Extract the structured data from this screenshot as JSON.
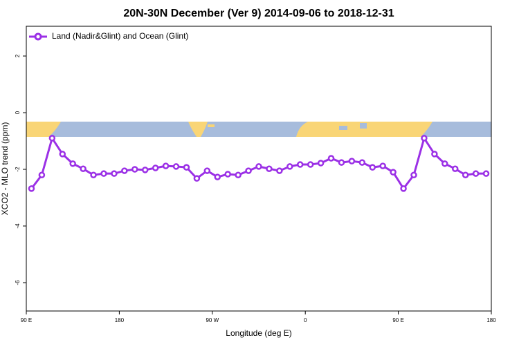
{
  "chart_data": {
    "type": "line",
    "title": "20N-30N December (Ver 9)   2014-09-06 to 2018-12-31",
    "x_label": "Longitude (deg E)",
    "y_label": "XCO2 - MLO trend (ppm)",
    "legend_position": "top-left",
    "x": [
      95,
      105,
      115,
      125,
      135,
      145,
      155,
      165,
      175,
      185,
      195,
      205,
      215,
      225,
      235,
      245,
      255,
      265,
      275,
      285,
      295,
      305,
      315,
      325,
      335,
      345,
      355,
      365,
      375,
      385,
      395,
      405,
      415,
      425,
      435,
      445,
      455,
      465,
      475,
      485,
      495,
      505,
      515,
      525,
      535
    ],
    "series": [
      {
        "name": "Land (Nadir&Glint) and Ocean (Glint)",
        "color": "#9b30e6",
        "values": [
          -2.68,
          -2.2,
          -0.9,
          -1.46,
          -1.8,
          -1.98,
          -2.2,
          -2.15,
          -2.15,
          -2.05,
          -2.0,
          -2.02,
          -1.95,
          -1.88,
          -1.9,
          -1.93,
          -2.32,
          -2.05,
          -2.27,
          -2.17,
          -2.2,
          -2.05,
          -1.9,
          -1.98,
          -2.05,
          -1.9,
          -1.83,
          -1.83,
          -1.78,
          -1.61,
          -1.76,
          -1.71,
          -1.76,
          -1.93,
          -1.88,
          -2.1,
          -2.68,
          -2.2,
          -0.9,
          -1.46,
          -1.8,
          -1.98,
          -2.2,
          -2.15,
          -2.15
        ]
      }
    ],
    "xlim": [
      90,
      540
    ],
    "xticks": [
      {
        "value": 90,
        "label": "90 E"
      },
      180,
      {
        "value": 270,
        "label": "90 W"
      },
      {
        "value": 360,
        "label": "0"
      },
      {
        "value": 450,
        "label": "90 E"
      },
      {
        "value": 540,
        "label": "180"
      }
    ],
    "ylim": [
      -7,
      3.05
    ],
    "yticks": [
      2,
      0,
      -2,
      -4,
      -6
    ]
  }
}
